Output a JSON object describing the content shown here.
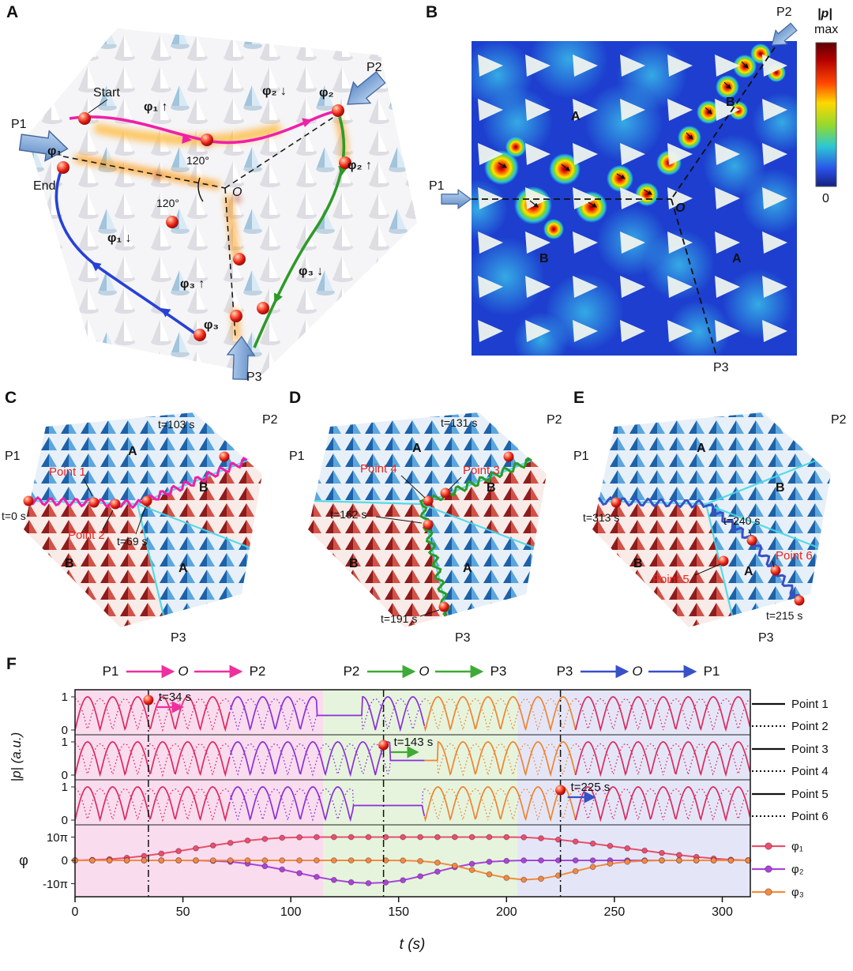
{
  "panelA": {
    "letter": "A",
    "p1": "P1",
    "p2": "P2",
    "p3": "P3",
    "start": "Start",
    "end": "End",
    "phi1_arrowlabel": "φ₁",
    "phi2_arrowlabel": "φ₂",
    "phi3_arrowlabel": "φ₃",
    "phi1_up": "φ₁ ↑",
    "phi1_down": "φ₁ ↓",
    "phi2_down": "φ₂ ↓",
    "phi2_up": "φ₂ ↑",
    "phi3_up": "φ₃ ↑",
    "phi3_down": "φ₃ ↓",
    "angle_upper": "120°",
    "angle_lower": "120°",
    "origin": "O"
  },
  "panelB": {
    "letter": "B",
    "p1": "P1",
    "p2": "P2",
    "p3": "P3",
    "region_a_top": "A",
    "region_b_top": "B",
    "region_b_bottom": "B",
    "region_a_bottom": "A",
    "origin": "O",
    "colorbar_title": "|p|",
    "colorbar_max": "max",
    "colorbar_min": "0"
  },
  "panelC": {
    "letter": "C",
    "p1": "P1",
    "p2": "P2",
    "p3": "P3",
    "region_a_top": "A",
    "region_b_right": "B",
    "region_b_left": "B",
    "region_a_bottom": "A",
    "t_start": "t=0 s",
    "t_mid": "t=69 s",
    "t_end": "t=103 s",
    "point_a": "Point 1",
    "point_b": "Point 2"
  },
  "panelD": {
    "letter": "D",
    "p1": "P1",
    "p2": "P2",
    "p3": "P3",
    "region_a_top": "A",
    "region_b_right": "B",
    "region_b_left": "B",
    "region_a_bottom": "A",
    "t_start": "t=131 s",
    "t_mid": "t=162 s",
    "t_end": "t=191 s",
    "point_a": "Point 3",
    "point_b": "Point 4"
  },
  "panelE": {
    "letter": "E",
    "p1": "P1",
    "p2": "P2",
    "p3": "P3",
    "region_a_top": "A",
    "region_b_right": "B",
    "region_b_left": "B",
    "region_a_bottom": "A",
    "t_start": "t=215 s",
    "t_mid": "t=240 s",
    "t_end": "t=313 s",
    "point_a": "Point 5",
    "point_b": "Point 6"
  },
  "panelF": {
    "letter": "F",
    "route1_from": "P1",
    "route1_via": "O",
    "route1_to": "P2",
    "route1_color": "#ee2fa0",
    "route2_from": "P2",
    "route2_via": "O",
    "route2_to": "P3",
    "route2_color": "#3faa35",
    "route3_from": "P3",
    "route3_via": "O",
    "route3_to": "P1",
    "route3_color": "#3850c8",
    "ylabel_p": "|p| (a.u.)",
    "ylabel_phi": "φ",
    "ytick_one": "1",
    "ytick_zero": "0",
    "phi_tick_top": "10π",
    "phi_tick_mid": "0",
    "phi_tick_bottom": "-10π",
    "xlabel": "t (s)",
    "legend_point1": "Point 1",
    "legend_point2": "Point 2",
    "legend_point3": "Point 3",
    "legend_point4": "Point 4",
    "legend_point5": "Point 5",
    "legend_point6": "Point 6",
    "legend_phi1": "φ₁",
    "legend_phi2": "φ₂",
    "legend_phi3": "φ₃"
  },
  "chart_data": {
    "type": "line",
    "xlabel": "t (s)",
    "x_range": [
      0,
      313
    ],
    "x_ticks": [
      0,
      50,
      100,
      150,
      200,
      250,
      300
    ],
    "background_regions": [
      {
        "from": 0,
        "to": 115,
        "color": "#fadcef"
      },
      {
        "from": 115,
        "to": 205,
        "color": "#e6f4dd"
      },
      {
        "from": 205,
        "to": 313,
        "color": "#e4e6f8"
      }
    ],
    "event_times": [
      34,
      143,
      225
    ],
    "pressure_rows": [
      {
        "solid": "Point 1",
        "dotted": "Point 2",
        "period": 11.6,
        "flat_from": 112,
        "flat_to": 133,
        "flat_value": 0.44
      },
      {
        "solid": "Point 3",
        "dotted": "Point 4",
        "period": 11.6,
        "flat_from": 146,
        "flat_to": 168,
        "flat_value": 0.44
      },
      {
        "solid": "Point 5",
        "dotted": "Point 6",
        "period": 11.6,
        "flat_from": 129,
        "flat_to": 161,
        "flat_value": 0.44
      }
    ],
    "wave_color_segments": [
      {
        "from": 0,
        "to": 72,
        "color": "#dc2a5e"
      },
      {
        "from": 72,
        "to": 162,
        "color": "#8b30d9"
      },
      {
        "from": 162,
        "to": 232,
        "color": "#ef8430"
      },
      {
        "from": 232,
        "to": 313,
        "color": "#dc2a5e"
      }
    ],
    "annotations": [
      {
        "row": 0,
        "t": 34,
        "label": "t=34 s",
        "color": "#ee2fa0"
      },
      {
        "row": 1,
        "t": 143,
        "label": "t=143 s",
        "color": "#3faa35"
      },
      {
        "row": 2,
        "t": 225,
        "label": "t=225 s",
        "color": "#3850c8"
      }
    ],
    "phi_axis": {
      "ticks_pi": [
        10,
        0,
        -10
      ],
      "ylim_pi": [
        -13,
        13
      ]
    },
    "phi_series": [
      {
        "name": "φ₁",
        "color": "#e8506c",
        "points_pi": [
          [
            0,
            0
          ],
          [
            8,
            0.2
          ],
          [
            16,
            0.5
          ],
          [
            24,
            1.1
          ],
          [
            32,
            1.9
          ],
          [
            40,
            2.9
          ],
          [
            48,
            4.0
          ],
          [
            56,
            5.2
          ],
          [
            64,
            6.4
          ],
          [
            72,
            7.5
          ],
          [
            80,
            8.5
          ],
          [
            88,
            9.2
          ],
          [
            96,
            9.7
          ],
          [
            104,
            9.9
          ],
          [
            112,
            10
          ],
          [
            120,
            10
          ],
          [
            128,
            10
          ],
          [
            136,
            10
          ],
          [
            144,
            10
          ],
          [
            152,
            10
          ],
          [
            160,
            10
          ],
          [
            168,
            10
          ],
          [
            176,
            10
          ],
          [
            184,
            10
          ],
          [
            192,
            10
          ],
          [
            200,
            10
          ],
          [
            208,
            9.9
          ],
          [
            216,
            9.5
          ],
          [
            224,
            8.9
          ],
          [
            232,
            8.1
          ],
          [
            240,
            7.2
          ],
          [
            248,
            6.2
          ],
          [
            256,
            5.2
          ],
          [
            264,
            4.2
          ],
          [
            272,
            3.2
          ],
          [
            280,
            2.3
          ],
          [
            288,
            1.5
          ],
          [
            296,
            0.8
          ],
          [
            304,
            0.3
          ],
          [
            312,
            0.05
          ]
        ]
      },
      {
        "name": "φ₂",
        "color": "#a746d8",
        "points_pi": [
          [
            0,
            0
          ],
          [
            8,
            0
          ],
          [
            16,
            0
          ],
          [
            24,
            0
          ],
          [
            32,
            0
          ],
          [
            40,
            0
          ],
          [
            48,
            0
          ],
          [
            56,
            -0.05
          ],
          [
            64,
            -0.2
          ],
          [
            72,
            -0.6
          ],
          [
            80,
            -1.4
          ],
          [
            88,
            -2.5
          ],
          [
            96,
            -3.9
          ],
          [
            104,
            -5.5
          ],
          [
            112,
            -7.1
          ],
          [
            120,
            -8.4
          ],
          [
            128,
            -9.4
          ],
          [
            136,
            -9.8
          ],
          [
            144,
            -9.5
          ],
          [
            152,
            -8.5
          ],
          [
            160,
            -6.8
          ],
          [
            168,
            -4.8
          ],
          [
            176,
            -2.9
          ],
          [
            184,
            -1.5
          ],
          [
            192,
            -0.6
          ],
          [
            200,
            -0.2
          ],
          [
            208,
            0
          ],
          [
            216,
            0
          ],
          [
            224,
            0
          ],
          [
            232,
            0
          ],
          [
            240,
            0
          ],
          [
            248,
            0
          ],
          [
            256,
            0
          ],
          [
            264,
            0
          ],
          [
            272,
            0
          ],
          [
            280,
            0
          ],
          [
            288,
            0
          ],
          [
            296,
            0
          ],
          [
            304,
            0
          ],
          [
            312,
            0
          ]
        ]
      },
      {
        "name": "φ₃",
        "color": "#f08c3e",
        "points_pi": [
          [
            0,
            0
          ],
          [
            8,
            0
          ],
          [
            16,
            0
          ],
          [
            24,
            0
          ],
          [
            32,
            0
          ],
          [
            40,
            0
          ],
          [
            48,
            0
          ],
          [
            56,
            0
          ],
          [
            64,
            0
          ],
          [
            72,
            0
          ],
          [
            80,
            0
          ],
          [
            88,
            0
          ],
          [
            96,
            0
          ],
          [
            104,
            0
          ],
          [
            112,
            0
          ],
          [
            120,
            0
          ],
          [
            128,
            0
          ],
          [
            136,
            0
          ],
          [
            144,
            0
          ],
          [
            152,
            -0.05
          ],
          [
            160,
            -0.3
          ],
          [
            168,
            -1.0
          ],
          [
            176,
            -2.3
          ],
          [
            184,
            -4.1
          ],
          [
            192,
            -6.0
          ],
          [
            200,
            -7.5
          ],
          [
            208,
            -8.3
          ],
          [
            216,
            -7.9
          ],
          [
            224,
            -6.5
          ],
          [
            232,
            -4.6
          ],
          [
            240,
            -2.8
          ],
          [
            248,
            -1.4
          ],
          [
            256,
            -0.6
          ],
          [
            264,
            -0.2
          ],
          [
            272,
            0
          ],
          [
            280,
            0
          ],
          [
            288,
            0
          ],
          [
            296,
            0
          ],
          [
            304,
            0
          ],
          [
            312,
            0
          ]
        ]
      }
    ]
  }
}
